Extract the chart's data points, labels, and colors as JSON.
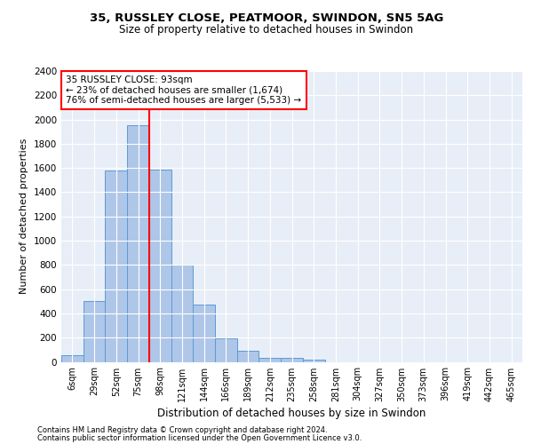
{
  "title_line1": "35, RUSSLEY CLOSE, PEATMOOR, SWINDON, SN5 5AG",
  "title_line2": "Size of property relative to detached houses in Swindon",
  "xlabel": "Distribution of detached houses by size in Swindon",
  "ylabel": "Number of detached properties",
  "footer_line1": "Contains HM Land Registry data © Crown copyright and database right 2024.",
  "footer_line2": "Contains public sector information licensed under the Open Government Licence v3.0.",
  "annotation_line1": "35 RUSSLEY CLOSE: 93sqm",
  "annotation_line2": "← 23% of detached houses are smaller (1,674)",
  "annotation_line3": "76% of semi-detached houses are larger (5,533) →",
  "bar_color": "#aec6e8",
  "bar_edge_color": "#5b9bd5",
  "highlight_color": "#ff0000",
  "bg_color": "#e8eef7",
  "categories": [
    "6sqm",
    "29sqm",
    "52sqm",
    "75sqm",
    "98sqm",
    "121sqm",
    "144sqm",
    "166sqm",
    "189sqm",
    "212sqm",
    "235sqm",
    "258sqm",
    "281sqm",
    "304sqm",
    "327sqm",
    "350sqm",
    "373sqm",
    "396sqm",
    "419sqm",
    "442sqm",
    "465sqm"
  ],
  "values": [
    55,
    500,
    1580,
    1950,
    1590,
    800,
    475,
    195,
    90,
    35,
    30,
    20,
    0,
    0,
    0,
    0,
    0,
    0,
    0,
    0,
    0
  ],
  "redline_x": 3.5,
  "ylim": [
    0,
    2400
  ],
  "yticks": [
    0,
    200,
    400,
    600,
    800,
    1000,
    1200,
    1400,
    1600,
    1800,
    2000,
    2200,
    2400
  ]
}
